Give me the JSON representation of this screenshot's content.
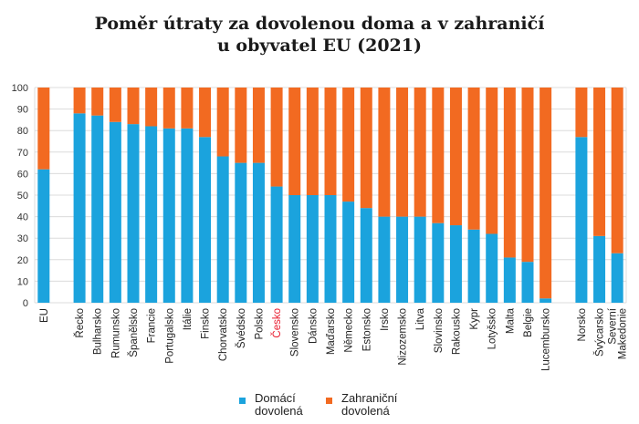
{
  "chart_data": {
    "type": "bar",
    "stacked": true,
    "title": [
      "Poměr útraty za dovolenou doma a v zahraničí",
      "u obyvatel EU (2021)"
    ],
    "ylim": [
      0,
      100
    ],
    "yticks": [
      0,
      10,
      20,
      30,
      40,
      50,
      60,
      70,
      80,
      90,
      100
    ],
    "grid": true,
    "legend_position": "bottom",
    "categories": [
      "EU",
      "Řecko",
      "Bulharsko",
      "Rumunsko",
      "Španělsko",
      "Francie",
      "Portugalsko",
      "Itálie",
      "Finsko",
      "Chorvatsko",
      "Švédsko",
      "Polsko",
      "Česko",
      "Slovensko",
      "Dánsko",
      "Maďarsko",
      "Německo",
      "Estonsko",
      "Irsko",
      "Nizozemsko",
      "Litva",
      "Slovinsko",
      "Rakousko",
      "Kypr",
      "Lotyšsko",
      "Malta",
      "Belgie",
      "Lucembursko",
      "Norsko",
      "Švýcarsko",
      "Severní Makedonie"
    ],
    "highlight_category": "Česko",
    "highlight_color": "#e8192c",
    "series": [
      {
        "name": "Domácí dovolená",
        "color": "#1ba3dd",
        "values": [
          62,
          88,
          87,
          84,
          83,
          82,
          81,
          81,
          77,
          68,
          65,
          65,
          54,
          50,
          50,
          50,
          47,
          44,
          40,
          40,
          40,
          37,
          36,
          34,
          32,
          21,
          19,
          2,
          77,
          31,
          23
        ]
      },
      {
        "name": "Zahraniční dovolená",
        "color": "#f26a21",
        "values": [
          38,
          12,
          13,
          16,
          17,
          18,
          19,
          19,
          23,
          32,
          35,
          35,
          46,
          50,
          50,
          50,
          53,
          56,
          60,
          60,
          60,
          63,
          64,
          66,
          68,
          79,
          81,
          98,
          23,
          69,
          77
        ]
      }
    ]
  },
  "legend": {
    "items": [
      {
        "lines": [
          "Domácí",
          "dovolená"
        ],
        "color": "#1ba3dd"
      },
      {
        "lines": [
          "Zahraniční",
          "dovolená"
        ],
        "color": "#f26a21"
      }
    ]
  }
}
